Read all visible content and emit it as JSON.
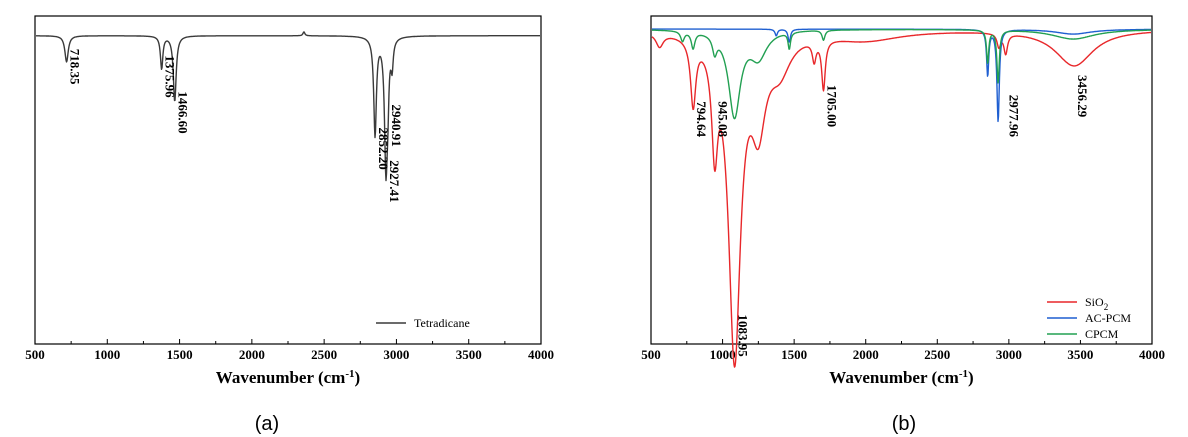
{
  "chart_data": [
    {
      "type": "line",
      "panel_label": "(a)",
      "xlabel": "Wavenumber (cm",
      "xlabel_sup": "-1",
      "xlabel_close": ")",
      "ylabel": "",
      "xlim": [
        500,
        4000
      ],
      "x_ticks": [
        500,
        1000,
        1500,
        2000,
        2500,
        3000,
        3500,
        4000
      ],
      "legend": {
        "placement": "bottom-right"
      },
      "series": [
        {
          "name": "Tetradicane",
          "color": "#3a3a3a",
          "baseline": 0.06,
          "features": [
            {
              "x": 718.35,
              "depth": 0.08,
              "width": 14
            },
            {
              "x": 1375.96,
              "depth": 0.1,
              "width": 10
            },
            {
              "x": 1466.6,
              "depth": 0.2,
              "width": 12
            },
            {
              "x": 2360,
              "depth": -0.012,
              "width": 8
            },
            {
              "x": 2852.2,
              "depth": 0.3,
              "width": 11
            },
            {
              "x": 2927.41,
              "depth": 0.4,
              "width": 12
            },
            {
              "x": 2940.91,
              "depth": 0.12,
              "width": 8
            },
            {
              "x": 2970,
              "depth": 0.08,
              "width": 9
            }
          ]
        }
      ],
      "peak_labels": [
        {
          "x": 718.35,
          "text": "718.35",
          "y": 0.1
        },
        {
          "x": 1375.96,
          "text": "1375.96",
          "y": 0.12
        },
        {
          "x": 1466.6,
          "text": "1466.60",
          "y": 0.23
        },
        {
          "x": 2852.2,
          "text": "2852.20",
          "y": 0.34
        },
        {
          "x": 2927.41,
          "text": "2927.41",
          "y": 0.44
        },
        {
          "x": 2940.91,
          "text": "2940.91",
          "y": 0.27
        }
      ]
    },
    {
      "type": "line",
      "panel_label": "(b)",
      "xlabel": "Wavenumber (cm",
      "xlabel_sup": "-1",
      "xlabel_close": ")",
      "ylabel": "",
      "xlim": [
        500,
        4000
      ],
      "x_ticks": [
        500,
        1000,
        1500,
        2000,
        2500,
        3000,
        3500,
        4000
      ],
      "legend": {
        "placement": "bottom-right"
      },
      "series": [
        {
          "name": "SiO2",
          "name_main": "SiO",
          "name_sub": "2",
          "color": "#e8272a",
          "baseline": 0.04,
          "features": [
            {
              "x": 560,
              "depth": 0.04,
              "width": 30
            },
            {
              "x": 794.64,
              "depth": 0.2,
              "width": 22
            },
            {
              "x": 945.08,
              "depth": 0.3,
              "width": 25
            },
            {
              "x": 1083.95,
              "depth": 0.98,
              "width": 50
            },
            {
              "x": 1250,
              "depth": 0.25,
              "width": 60
            },
            {
              "x": 1400,
              "depth": 0.1,
              "width": 90
            },
            {
              "x": 1640,
              "depth": 0.06,
              "width": 15
            },
            {
              "x": 1705,
              "depth": 0.15,
              "width": 15
            },
            {
              "x": 2000,
              "depth": 0.03,
              "width": 300
            },
            {
              "x": 2930,
              "depth": 0.04,
              "width": 15
            },
            {
              "x": 2977.96,
              "depth": 0.06,
              "width": 15
            },
            {
              "x": 3456.29,
              "depth": 0.11,
              "width": 160
            }
          ]
        },
        {
          "name": "AC-PCM",
          "color": "#1f5fd1",
          "baseline": 0.04,
          "features": [
            {
              "x": 1375,
              "depth": 0.02,
              "width": 10
            },
            {
              "x": 1466,
              "depth": 0.04,
              "width": 10
            },
            {
              "x": 2852,
              "depth": 0.14,
              "width": 9
            },
            {
              "x": 2925,
              "depth": 0.28,
              "width": 10
            },
            {
              "x": 3450,
              "depth": 0.015,
              "width": 150
            }
          ]
        },
        {
          "name": "CPCM",
          "color": "#22a052",
          "baseline": 0.04,
          "features": [
            {
              "x": 720,
              "depth": 0.03,
              "width": 15
            },
            {
              "x": 794,
              "depth": 0.05,
              "width": 15
            },
            {
              "x": 945,
              "depth": 0.05,
              "width": 18
            },
            {
              "x": 1083,
              "depth": 0.26,
              "width": 50
            },
            {
              "x": 1250,
              "depth": 0.08,
              "width": 70
            },
            {
              "x": 1466,
              "depth": 0.05,
              "width": 10
            },
            {
              "x": 1705,
              "depth": 0.03,
              "width": 12
            },
            {
              "x": 2852,
              "depth": 0.1,
              "width": 9
            },
            {
              "x": 2925,
              "depth": 0.16,
              "width": 10
            },
            {
              "x": 3450,
              "depth": 0.03,
              "width": 180
            }
          ]
        }
      ],
      "peak_labels": [
        {
          "x": 794.64,
          "text": "794.64",
          "y": 0.26
        },
        {
          "x": 945.08,
          "text": "945.08",
          "y": 0.26
        },
        {
          "x": 1083.95,
          "text": "1083.95",
          "y": 0.91
        },
        {
          "x": 1705.0,
          "text": "1705.00",
          "y": 0.21
        },
        {
          "x": 2977.96,
          "text": "2977.96",
          "y": 0.24
        },
        {
          "x": 3456.29,
          "text": "3456.29",
          "y": 0.18
        }
      ]
    }
  ]
}
